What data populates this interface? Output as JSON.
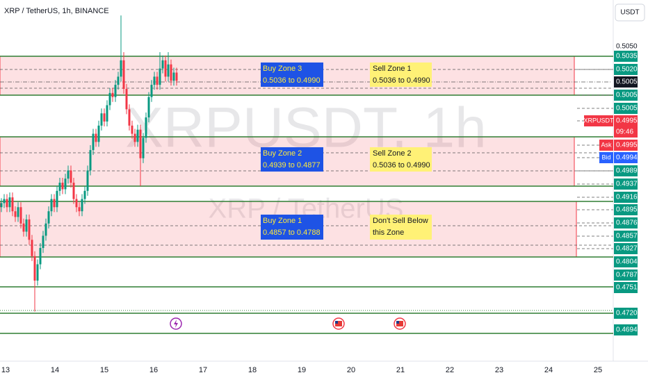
{
  "header": {
    "symbol": "XRP / TetherUS, 1h, BINANCE",
    "currency": "USDT"
  },
  "watermark": {
    "ticker": "XRPUSDT, 1h",
    "name": "XRP / TetherUS"
  },
  "zones": [
    {
      "buy": [
        "Buy Zone 3",
        "0.5036 to 0.4990"
      ],
      "sell": [
        "Sell Zone 1",
        "0.5036 to 0.4990"
      ]
    },
    {
      "buy": [
        "Buy Zone 2",
        "0.4939 to 0.4877"
      ],
      "sell": [
        "Sell Zone 2",
        "0.5036 to 0.4990"
      ]
    },
    {
      "buy": [
        "Buy Zone 1",
        "0.4857 to 0.4788"
      ],
      "sell": [
        "Don't Sell Below",
        "this Zone"
      ]
    }
  ],
  "price_labels": [
    "0.5050",
    "0.5035",
    "0.5020",
    "0.5005",
    "0.5005",
    "0.5005",
    "0.4995",
    "09:46",
    "0.4995",
    "0.4994",
    "0.4989",
    "0.4937",
    "0.4916",
    "0.4895",
    "0.4876",
    "0.4857",
    "0.4827",
    "0.4804",
    "0.4787",
    "0.4751",
    "0.4720",
    "0.4694"
  ],
  "symbol_tag": "XRPUSDT",
  "ask": "Ask",
  "bid": "Bid",
  "dates": [
    "13",
    "14",
    "15",
    "16",
    "17",
    "18",
    "19",
    "20",
    "21",
    "22",
    "23",
    "24",
    "25"
  ],
  "candles": [
    [
      0.485,
      0.4861,
      0.4844,
      0.4855
    ],
    [
      0.4855,
      0.4866,
      0.4849,
      0.486
    ],
    [
      0.486,
      0.4866,
      0.4844,
      0.485
    ],
    [
      0.485,
      0.4868,
      0.4844,
      0.4862
    ],
    [
      0.4862,
      0.4868,
      0.4839,
      0.4845
    ],
    [
      0.4845,
      0.4851,
      0.4832,
      0.4838
    ],
    [
      0.4838,
      0.4856,
      0.4832,
      0.485
    ],
    [
      0.485,
      0.4856,
      0.4824,
      0.483
    ],
    [
      0.483,
      0.4836,
      0.4814,
      0.482
    ],
    [
      0.482,
      0.4841,
      0.4814,
      0.4835
    ],
    [
      0.4835,
      0.4841,
      0.4804,
      0.481
    ],
    [
      0.481,
      0.4816,
      0.4784,
      0.479
    ],
    [
      0.479,
      0.4796,
      0.4722,
      0.476
    ],
    [
      0.476,
      0.4786,
      0.4754,
      0.478
    ],
    [
      0.478,
      0.4806,
      0.4774,
      0.48
    ],
    [
      0.48,
      0.4821,
      0.4794,
      0.4815
    ],
    [
      0.4815,
      0.4836,
      0.4809,
      0.483
    ],
    [
      0.483,
      0.4851,
      0.4824,
      0.4845
    ],
    [
      0.4845,
      0.4866,
      0.4839,
      0.486
    ],
    [
      0.486,
      0.4866,
      0.4844,
      0.485
    ],
    [
      0.485,
      0.4876,
      0.4844,
      0.487
    ],
    [
      0.487,
      0.4886,
      0.4864,
      0.488
    ],
    [
      0.488,
      0.4886,
      0.4866,
      0.4872
    ],
    [
      0.4872,
      0.4891,
      0.4866,
      0.4885
    ],
    [
      0.4885,
      0.4901,
      0.4879,
      0.4895
    ],
    [
      0.4895,
      0.4901,
      0.4874,
      0.488
    ],
    [
      0.488,
      0.4886,
      0.4854,
      0.486
    ],
    [
      0.486,
      0.4866,
      0.4844,
      0.485
    ],
    [
      0.485,
      0.4856,
      0.4839,
      0.4845
    ],
    [
      0.4845,
      0.4866,
      0.4839,
      0.486
    ],
    [
      0.486,
      0.4876,
      0.4854,
      0.487
    ],
    [
      0.487,
      0.4901,
      0.4864,
      0.4895
    ],
    [
      0.4895,
      0.4926,
      0.4889,
      0.492
    ],
    [
      0.492,
      0.4946,
      0.4914,
      0.494
    ],
    [
      0.494,
      0.4946,
      0.4924,
      0.493
    ],
    [
      0.493,
      0.4956,
      0.4924,
      0.495
    ],
    [
      0.495,
      0.4971,
      0.4944,
      0.4965
    ],
    [
      0.4965,
      0.4971,
      0.4949,
      0.4955
    ],
    [
      0.4955,
      0.4981,
      0.4949,
      0.4975
    ],
    [
      0.4975,
      0.4996,
      0.4969,
      0.499
    ],
    [
      0.499,
      0.4996,
      0.4979,
      0.4985
    ],
    [
      0.4985,
      0.5006,
      0.4979,
      0.5
    ],
    [
      0.5,
      0.5016,
      0.4994,
      0.501
    ],
    [
      0.501,
      0.5085,
      0.5004,
      0.503
    ],
    [
      0.503,
      0.504,
      0.4989,
      0.4995
    ],
    [
      0.4995,
      0.5001,
      0.4964,
      0.497
    ],
    [
      0.497,
      0.4976,
      0.4944,
      0.495
    ],
    [
      0.495,
      0.4956,
      0.4934,
      0.494
    ],
    [
      0.494,
      0.4946,
      0.4924,
      0.493
    ],
    [
      0.493,
      0.4951,
      0.4924,
      0.4945
    ],
    [
      0.4945,
      0.4951,
      0.4876,
      0.491
    ],
    [
      0.491,
      0.4941,
      0.4904,
      0.4935
    ],
    [
      0.4935,
      0.4966,
      0.4929,
      0.496
    ],
    [
      0.496,
      0.4991,
      0.4954,
      0.4985
    ],
    [
      0.4985,
      0.5006,
      0.4979,
      0.5
    ],
    [
      0.5,
      0.5016,
      0.4994,
      0.501
    ],
    [
      0.501,
      0.5016,
      0.4994,
      0.5
    ],
    [
      0.5,
      0.504,
      0.4994,
      0.502
    ],
    [
      0.502,
      0.5036,
      0.5014,
      0.503
    ],
    [
      0.503,
      0.5036,
      0.5004,
      0.501
    ],
    [
      0.501,
      0.504,
      0.5004,
      0.5025
    ],
    [
      0.5025,
      0.5031,
      0.4999,
      0.5005
    ],
    [
      0.5005,
      0.5021,
      0.4999,
      0.5015
    ],
    [
      0.5015,
      0.5021,
      0.4999,
      0.5005
    ]
  ]
}
